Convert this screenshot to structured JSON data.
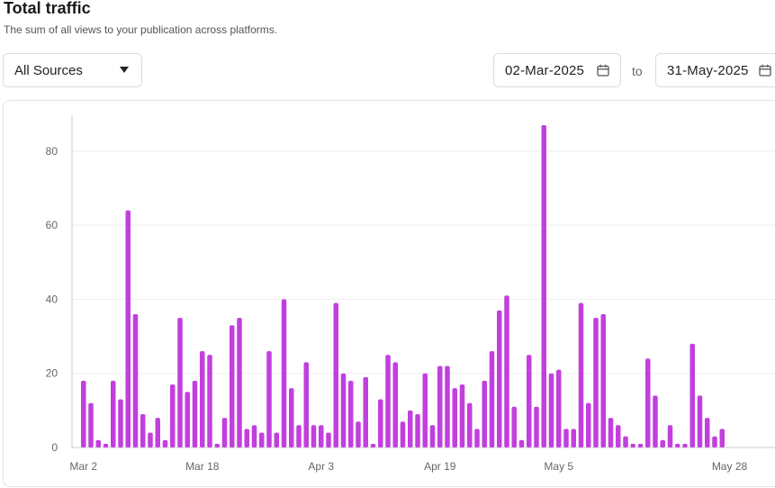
{
  "header": {
    "title": "Total traffic",
    "subtitle": "The sum of all views to your publication across platforms."
  },
  "filters": {
    "source_label": "All Sources",
    "date_from": "02-Mar-2025",
    "to_label": "to",
    "date_to": "31-May-2025"
  },
  "icons": {
    "dropdown": "chevron-down-icon",
    "calendar": "calendar-icon"
  },
  "colors": {
    "bar": "#c23fde",
    "grid": "#eeeeee",
    "axis": "#cccccc"
  },
  "chart_data": {
    "type": "bar",
    "title": "",
    "xlabel": "",
    "ylabel": "",
    "ylim": [
      0,
      90
    ],
    "yticks": [
      0,
      20,
      40,
      60,
      80
    ],
    "x_tick_labels": [
      {
        "index": 0,
        "label": "Mar 2"
      },
      {
        "index": 16,
        "label": "Mar 18"
      },
      {
        "index": 32,
        "label": "Apr 3"
      },
      {
        "index": 48,
        "label": "Apr 19"
      },
      {
        "index": 64,
        "label": "May 5"
      },
      {
        "index": 87,
        "label": "May 28"
      }
    ],
    "grid": true,
    "legend": "none",
    "start_date": "2025-03-02",
    "values": [
      18,
      12,
      2,
      1,
      18,
      13,
      64,
      36,
      9,
      4,
      8,
      2,
      17,
      35,
      15,
      18,
      26,
      25,
      1,
      8,
      33,
      35,
      5,
      6,
      4,
      26,
      4,
      40,
      16,
      6,
      23,
      6,
      6,
      4,
      39,
      20,
      18,
      7,
      19,
      1,
      13,
      25,
      23,
      7,
      10,
      9,
      20,
      6,
      22,
      22,
      16,
      17,
      12,
      5,
      18,
      26,
      37,
      41,
      11,
      2,
      25,
      11,
      87,
      20,
      21,
      5,
      5,
      39,
      12,
      35,
      36,
      8,
      6,
      3,
      1,
      1,
      24,
      14,
      2,
      6,
      1,
      1,
      28,
      14,
      8,
      3,
      5,
      0,
      0,
      0,
      0
    ]
  }
}
